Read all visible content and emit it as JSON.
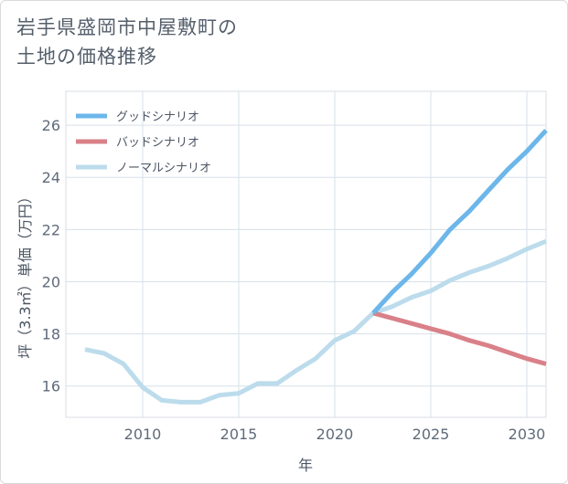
{
  "title_lines": [
    "岩手県盛岡市中屋敷町の",
    "土地の価格推移"
  ],
  "chart_data": {
    "type": "line",
    "xlabel": "年",
    "ylabel": "坪（3.3㎡）単価（万円）",
    "xlim": [
      2006,
      2031
    ],
    "ylim": [
      14.8,
      27.3
    ],
    "xticks": [
      2010,
      2015,
      2020,
      2025,
      2030
    ],
    "yticks": [
      16,
      18,
      20,
      22,
      24,
      26
    ],
    "grid": true,
    "legend_position": "top-left",
    "series": [
      {
        "name": "グッドシナリオ",
        "color": "#6cb6ea",
        "x": [
          2022,
          2023,
          2024,
          2025,
          2026,
          2027,
          2028,
          2029,
          2030,
          2031
        ],
        "y": [
          18.8,
          19.6,
          20.3,
          21.1,
          22.0,
          22.7,
          23.5,
          24.3,
          25.0,
          25.8
        ]
      },
      {
        "name": "バッドシナリオ",
        "color": "#d98088",
        "x": [
          2022,
          2023,
          2024,
          2025,
          2026,
          2027,
          2028,
          2029,
          2030,
          2031
        ],
        "y": [
          18.8,
          18.6,
          18.4,
          18.2,
          18.0,
          17.75,
          17.55,
          17.3,
          17.05,
          16.85
        ]
      },
      {
        "name": "ノーマルシナリオ",
        "color": "#bcdcec",
        "x": [
          2007,
          2008,
          2009,
          2010,
          2011,
          2012,
          2013,
          2014,
          2015,
          2016,
          2017,
          2018,
          2019,
          2020,
          2021,
          2022,
          2023,
          2024,
          2025,
          2026,
          2027,
          2028,
          2029,
          2030,
          2031
        ],
        "y": [
          17.4,
          17.25,
          16.85,
          15.95,
          15.45,
          15.38,
          15.38,
          15.65,
          15.72,
          16.1,
          16.1,
          16.6,
          17.05,
          17.75,
          18.1,
          18.8,
          19.05,
          19.4,
          19.65,
          20.05,
          20.35,
          20.6,
          20.9,
          21.25,
          21.55
        ]
      }
    ]
  }
}
